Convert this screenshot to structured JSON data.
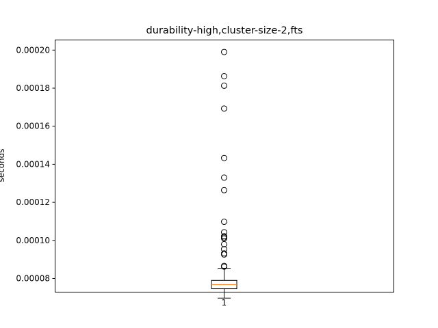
{
  "chart_data": {
    "type": "box",
    "title": "durability-high,cluster-size-2,fts",
    "ylabel": "seconds",
    "xlabel": "",
    "categories": [
      "1"
    ],
    "ylim": [
      7.3e-05,
      0.0002055
    ],
    "yticks": [
      8e-05,
      0.0001,
      0.00012,
      0.00014,
      0.00016,
      0.00018,
      0.0002
    ],
    "ytick_labels": [
      "0.00008",
      "0.00010",
      "0.00012",
      "0.00014",
      "0.00016",
      "0.00018",
      "0.00020"
    ],
    "grid": false,
    "boxes": [
      {
        "name": "1",
        "whisker_low": 6.97e-05,
        "q1": 7.46e-05,
        "median": 7.68e-05,
        "q3": 7.9e-05,
        "whisker_high": 8.54e-05,
        "outliers": [
          0.000199,
          0.0001863,
          0.0001813,
          0.0001693,
          0.0001433,
          0.000133,
          0.0001264,
          0.0001098,
          0.0001043,
          0.0001022,
          0.0001016,
          0.000101,
          9.8e-05,
          9.54e-05,
          9.32e-05,
          9.26e-05,
          8.66e-05,
          8.62e-05
        ]
      }
    ],
    "colors": {
      "box": "#000000",
      "median": "#ff7f0e",
      "outlier": "#000000"
    }
  }
}
